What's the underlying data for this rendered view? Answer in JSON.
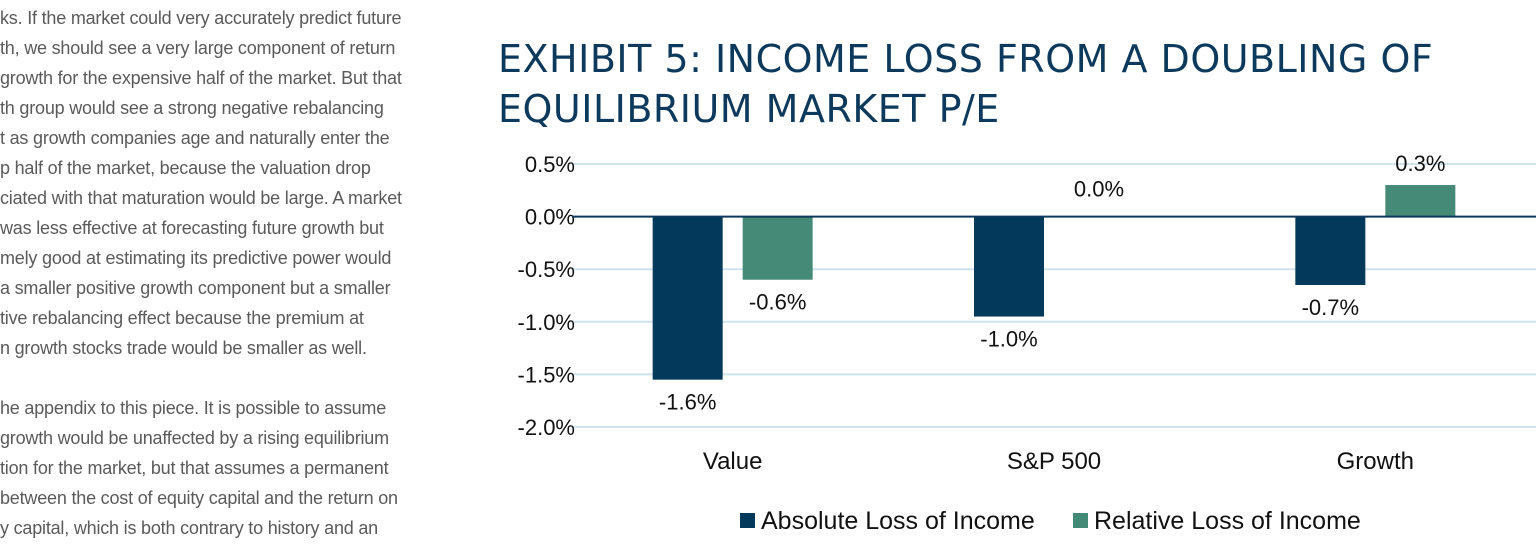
{
  "body_text": {
    "lines": [
      "ks. If the market could very accurately predict future",
      "th, we should see a very large component of return",
      "growth for the expensive half of the market. But that",
      "th group would see a strong negative rebalancing",
      "t as growth companies age and naturally enter the",
      "p half of the market, because the valuation drop",
      "ciated with that maturation would be large. A market",
      "was less effective at forecasting future growth but",
      "mely good at estimating its predictive power would",
      "a smaller positive growth component but a smaller",
      "tive rebalancing effect because the premium at",
      "n growth stocks trade would be smaller as well.",
      "",
      "he appendix to this piece. It is possible to assume",
      "growth would be unaffected by a rising equilibrium",
      "tion for the market, but that assumes a permanent",
      "between the cost of equity capital and the return on",
      "y capital, which is both contrary to history and an"
    ]
  },
  "exhibit": {
    "title_line1": "EXHIBIT 5: INCOME LOSS FROM A DOUBLING OF",
    "title_line2": "EQUILIBRIUM MARKET P/E"
  },
  "chart_data": {
    "type": "bar",
    "title": "EXHIBIT 5: INCOME LOSS FROM A DOUBLING OF EQUILIBRIUM MARKET P/E",
    "categories": [
      "Value",
      "S&P 500",
      "Growth"
    ],
    "series": [
      {
        "name": "Absolute Loss of Income",
        "values": [
          -1.55,
          -0.95,
          -0.65
        ],
        "labels": [
          "-1.6%",
          "-1.0%",
          "-0.7%"
        ],
        "color": "#03395a"
      },
      {
        "name": "Relative Loss of Income",
        "values": [
          -0.6,
          0.0,
          0.3
        ],
        "labels": [
          "-0.6%",
          "0.0%",
          "0.3%"
        ],
        "color": "#458a76"
      }
    ],
    "ylim": [
      -2.0,
      0.5
    ],
    "yticks": [
      0.5,
      0.0,
      -0.5,
      -1.0,
      -1.5,
      -2.0
    ],
    "ytick_labels": [
      "0.5%",
      "0.0%",
      "-0.5%",
      "-1.0%",
      "-1.5%",
      "-2.0%"
    ],
    "xlabel": "",
    "ylabel": "",
    "grid": true,
    "gridline_color": "#cfe3ec",
    "zero_line_color": "#0d3a5c",
    "legend_position": "bottom"
  }
}
